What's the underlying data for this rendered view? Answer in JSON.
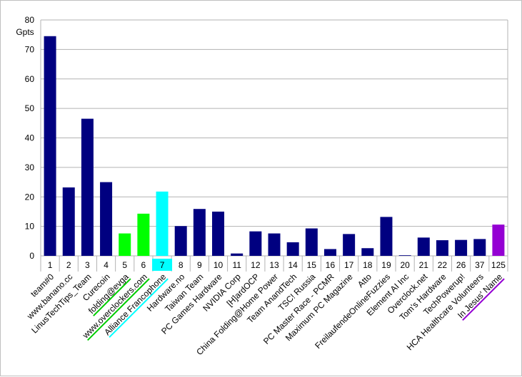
{
  "chart_data": {
    "type": "bar",
    "ylabel": "Gpts",
    "ylim": [
      0,
      80
    ],
    "yticks": [
      0,
      10,
      20,
      30,
      40,
      50,
      60,
      70,
      80
    ],
    "grid": true,
    "bar_color": "#000080",
    "ranks": [
      "1",
      "2",
      "3",
      "4",
      "5",
      "6",
      "7",
      "8",
      "9",
      "10",
      "11",
      "12",
      "13",
      "14",
      "15",
      "16",
      "17",
      "18",
      "19",
      "20",
      "21",
      "22",
      "26",
      "37",
      "125"
    ],
    "categories": [
      "team#0",
      "www.banano.cc",
      "LinusTechTips_Team",
      "Curecoin",
      "folding@evga",
      "www.overclockers.com",
      "Alliance Francophone",
      "Hardware.no",
      "Taiwan Team",
      "PC Games Hardware",
      "NVIDIA Corp",
      "[H]ardOCP",
      "China Folding@Home Power",
      "Team AnandTech",
      "TSC! Russia",
      "PC Master Race - PCMR",
      "Maximum PC Magazine",
      "Atto",
      "FreilaufendeOnlineFuzzies",
      "Element AI Inc",
      "Overclock.net",
      "Tom's Hardware",
      "TechPowerup!",
      "HCA Healthcare Volunteers",
      "In Jesus' Name"
    ],
    "values": [
      74.5,
      23.2,
      46.5,
      25.0,
      7.6,
      14.3,
      21.8,
      10.1,
      15.9,
      15.0,
      0.8,
      8.3,
      7.6,
      4.6,
      9.3,
      2.3,
      7.4,
      2.6,
      13.2,
      0.2,
      6.2,
      5.3,
      5.4,
      5.7,
      10.6
    ],
    "bar_colors": [
      "#000080",
      "#000080",
      "#000080",
      "#000080",
      "#00ff00",
      "#00ff00",
      "#00ffff",
      "#000080",
      "#000080",
      "#000080",
      "#000080",
      "#000080",
      "#000080",
      "#000080",
      "#000080",
      "#000080",
      "#000080",
      "#000080",
      "#000080",
      "#000080",
      "#000080",
      "#000080",
      "#000080",
      "#000080",
      "#9400d3"
    ],
    "rank_highlight_colors": [
      "",
      "",
      "",
      "",
      "",
      "",
      "#00ffff",
      "",
      "",
      "",
      "",
      "",
      "",
      "",
      "",
      "",
      "",
      "",
      "",
      "",
      "",
      "",
      "",
      "",
      ""
    ],
    "label_underline_colors": [
      "",
      "",
      "",
      "",
      "#00cc00",
      "#00cc00",
      "#00ffff",
      "",
      "",
      "",
      "",
      "",
      "",
      "",
      "",
      "",
      "",
      "",
      "",
      "",
      "",
      "",
      "",
      "",
      "#9400d3"
    ]
  }
}
